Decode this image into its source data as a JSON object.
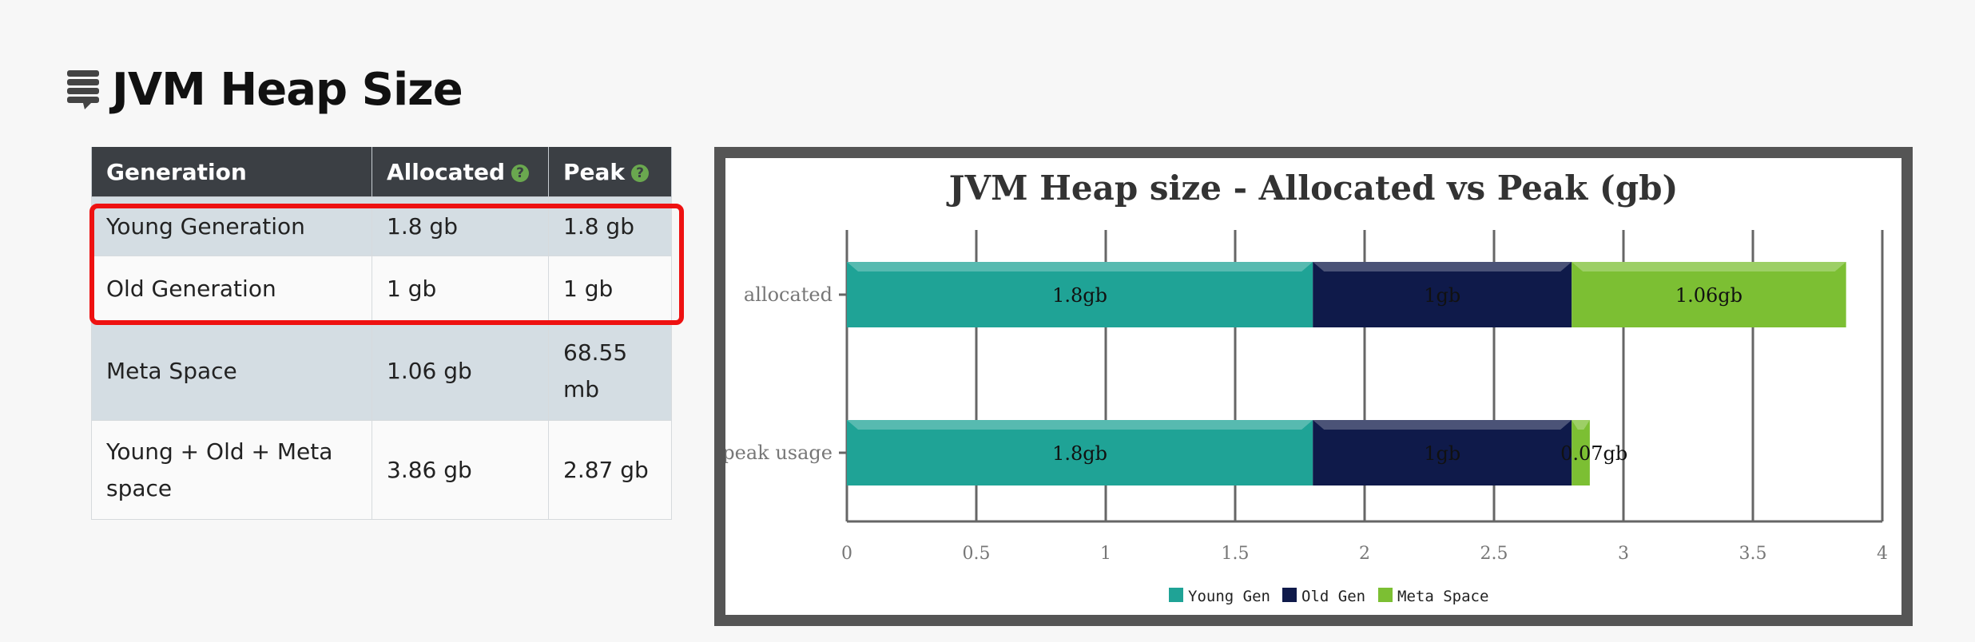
{
  "page": {
    "title": "JVM Heap Size",
    "title_icon": "stacked-layers-icon"
  },
  "table": {
    "headers": [
      {
        "label": "Generation",
        "help": ""
      },
      {
        "label": "Allocated",
        "help": "?"
      },
      {
        "label": "Peak",
        "help": "?"
      }
    ],
    "rows": [
      {
        "generation": "Young Generation",
        "allocated": "1.8 gb",
        "peak": "1.8 gb"
      },
      {
        "generation": "Old Generation",
        "allocated": "1 gb",
        "peak": "1 gb"
      },
      {
        "generation": "Meta Space",
        "allocated": "1.06 gb",
        "peak": "68.55 mb"
      },
      {
        "generation": "Young + Old + Meta space",
        "allocated": "3.86 gb",
        "peak": "2.87 gb"
      }
    ]
  },
  "colors": {
    "header_bg": "#3b3f44",
    "row_shade": "#d4dde3",
    "highlight": "#ee1111",
    "help_icon": "#6aa84f"
  },
  "chart_data": {
    "type": "bar",
    "orientation": "horizontal",
    "stacked": true,
    "title": "JVM Heap size - Allocated vs Peak (gb)",
    "categories": [
      "allocated",
      "peak usage"
    ],
    "series": [
      {
        "name": "Young Gen",
        "color": "#1fa396",
        "values": [
          1.8,
          1.8
        ],
        "labels": [
          "1.8gb",
          "1.8gb"
        ]
      },
      {
        "name": "Old Gen",
        "color": "#0f1a4a",
        "values": [
          1.0,
          1.0
        ],
        "labels": [
          "1gb",
          "1gb"
        ]
      },
      {
        "name": "Meta Space",
        "color": "#7cbf33",
        "values": [
          1.06,
          0.07
        ],
        "labels": [
          "1.06gb",
          "0.07gb"
        ]
      }
    ],
    "xlim": [
      0,
      4
    ],
    "xticks": [
      "0",
      "0.5",
      "1",
      "1.5",
      "2",
      "2.5",
      "3",
      "3.5",
      "4"
    ],
    "grid": true,
    "legend": "bottom-center"
  }
}
